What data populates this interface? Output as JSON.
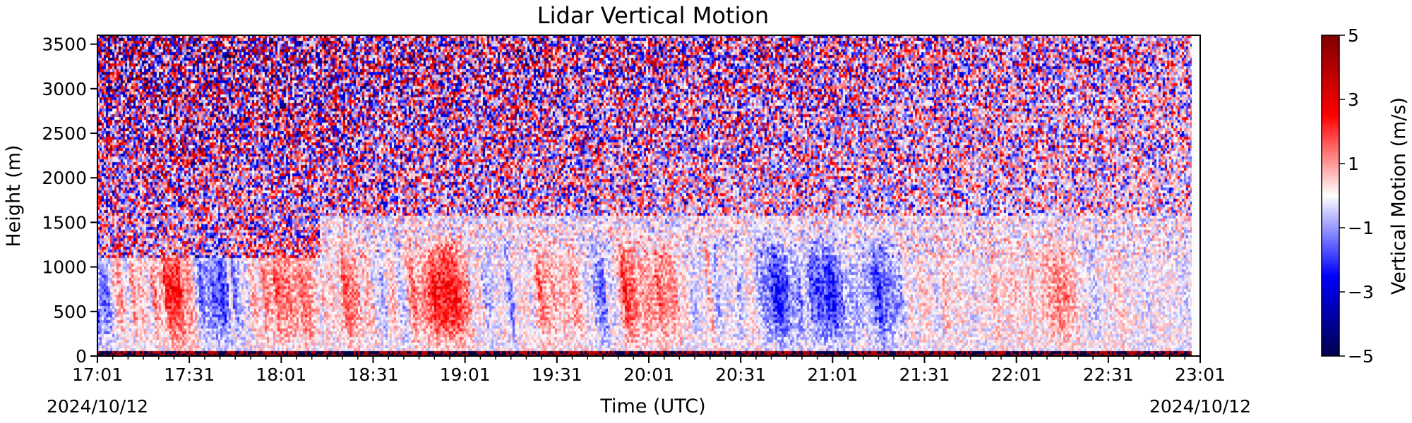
{
  "chart_data": {
    "type": "heatmap",
    "title": "Lidar Vertical Motion",
    "xlabel": "Time (UTC)",
    "ylabel": "Height (m)",
    "x_range": [
      "17:01",
      "23:01"
    ],
    "ylim": [
      0,
      3600
    ],
    "x_ticks": [
      "17:01",
      "17:31",
      "18:01",
      "18:31",
      "19:01",
      "19:31",
      "20:01",
      "20:31",
      "21:01",
      "21:31",
      "22:01",
      "22:31",
      "23:01"
    ],
    "y_ticks": [
      "0",
      "500",
      "1000",
      "1500",
      "2000",
      "2500",
      "3000",
      "3500"
    ],
    "y_tick_values": [
      0,
      500,
      1000,
      1500,
      2000,
      2500,
      3000,
      3500
    ],
    "start_date": "2024/10/12",
    "end_date": "2024/10/12",
    "colorbar": {
      "label": "Vertical Motion (m/s)",
      "range": [
        -5,
        5
      ],
      "ticks": [
        "5",
        "3",
        "1",
        "−1",
        "−3",
        "−5"
      ],
      "tick_values": [
        5,
        3,
        1,
        -1,
        -3,
        -5
      ],
      "colormap": "seismic",
      "colors": [
        "#00004c",
        "#0000ff",
        "#ffffff",
        "#ff0000",
        "#7f0000"
      ]
    },
    "features": {
      "boundary_layer_top_m": 1600,
      "noisy_region_above_m": 1600
    }
  }
}
